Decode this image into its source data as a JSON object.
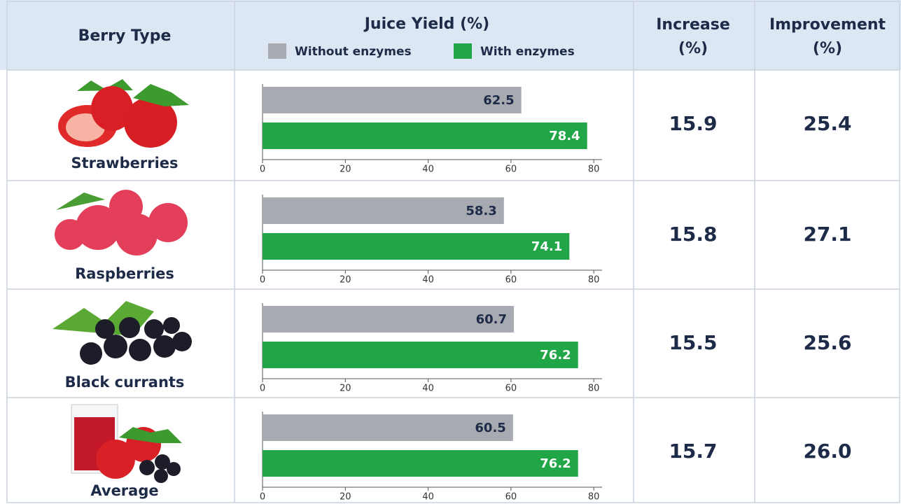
{
  "header": {
    "berry_type": "Berry Type",
    "juice_yield": "Juice Yield (%)",
    "increase": [
      "Increase",
      "(%)"
    ],
    "improvement": [
      "Improvement",
      "(%)"
    ]
  },
  "legend": [
    {
      "name": "Without enzymes",
      "color": "#a7abb1"
    },
    {
      "name": "With enzymes",
      "color": "#21a647"
    }
  ],
  "xlim": [
    0,
    82
  ],
  "xticks": [
    0,
    20,
    40,
    60,
    80
  ],
  "rows": [
    {
      "berry": "Strawberries",
      "without": 62.5,
      "with": 78.4,
      "increase": "15.9",
      "improvement": "25.4"
    },
    {
      "berry": "Raspberries",
      "without": 58.3,
      "with": 74.1,
      "increase": "15.8",
      "improvement": "27.1"
    },
    {
      "berry": "Black currants",
      "without": 60.7,
      "with": 76.2,
      "increase": "15.5",
      "improvement": "25.6"
    },
    {
      "berry": "Average",
      "without": 60.5,
      "with": 76.2,
      "increase": "15.7",
      "improvement": "26.0"
    }
  ]
}
